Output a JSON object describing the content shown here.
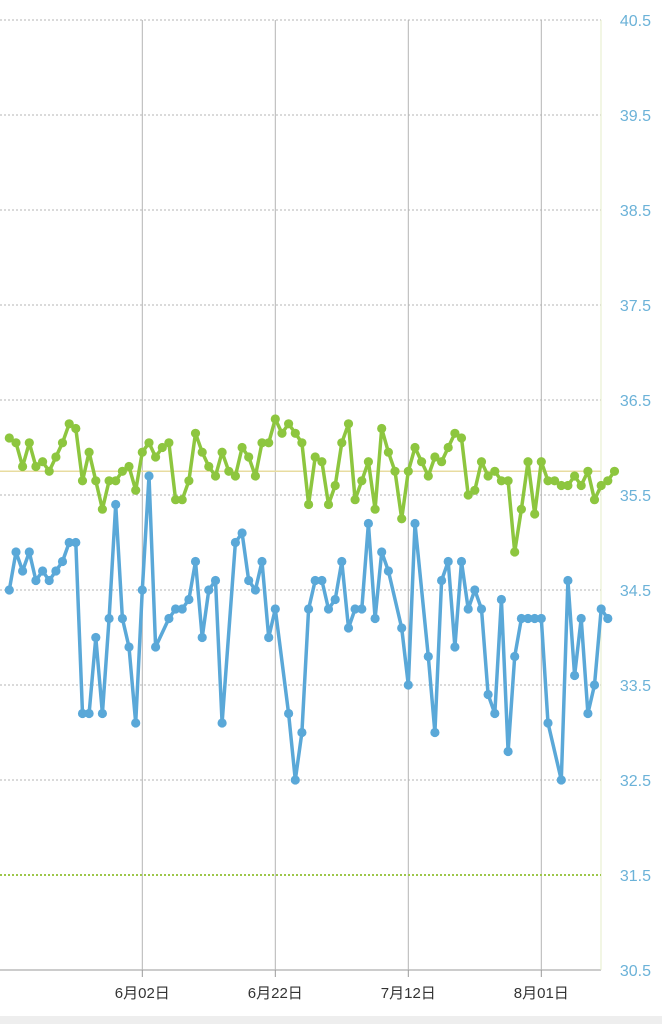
{
  "chart_data": {
    "type": "line",
    "title": "",
    "xlabel": "",
    "ylabel": "",
    "ylim": [
      30.5,
      40.5
    ],
    "y_ticks": [
      "30.5",
      "31.5",
      "32.5",
      "33.5",
      "34.5",
      "35.5",
      "36.5",
      "37.5",
      "38.5",
      "39.5",
      "40.5"
    ],
    "x_ticks": [
      {
        "label": "6月02日",
        "day": 20
      },
      {
        "label": "6月22日",
        "day": 40
      },
      {
        "label": "7月12日",
        "day": 60
      },
      {
        "label": "8月01日",
        "day": 80
      }
    ],
    "x_day_range": [
      0,
      90
    ],
    "grid": true,
    "reference_lines": [
      {
        "value": 35.75,
        "color": "#e8dca0",
        "style": "solid"
      },
      {
        "value": 31.5,
        "color": "#9dc74a",
        "style": "dotted"
      }
    ],
    "series": [
      {
        "color": "#8dc63f",
        "points": [
          [
            0,
            36.1
          ],
          [
            1,
            36.05
          ],
          [
            2,
            35.8
          ],
          [
            3,
            36.05
          ],
          [
            4,
            35.8
          ],
          [
            5,
            35.85
          ],
          [
            6,
            35.75
          ],
          [
            7,
            35.9
          ],
          [
            8,
            36.05
          ],
          [
            9,
            36.25
          ],
          [
            10,
            36.2
          ],
          [
            11,
            35.65
          ],
          [
            12,
            35.95
          ],
          [
            13,
            35.65
          ],
          [
            14,
            35.35
          ],
          [
            15,
            35.65
          ],
          [
            16,
            35.65
          ],
          [
            17,
            35.75
          ],
          [
            18,
            35.8
          ],
          [
            19,
            35.55
          ],
          [
            20,
            35.95
          ],
          [
            21,
            36.05
          ],
          [
            22,
            35.9
          ],
          [
            23,
            36.0
          ],
          [
            24,
            36.05
          ],
          [
            25,
            35.45
          ],
          [
            26,
            35.45
          ],
          [
            27,
            35.65
          ],
          [
            28,
            36.15
          ],
          [
            29,
            35.95
          ],
          [
            30,
            35.8
          ],
          [
            31,
            35.7
          ],
          [
            32,
            35.95
          ],
          [
            33,
            35.75
          ],
          [
            34,
            35.7
          ],
          [
            35,
            36.0
          ],
          [
            36,
            35.9
          ],
          [
            37,
            35.7
          ],
          [
            38,
            36.05
          ],
          [
            39,
            36.05
          ],
          [
            40,
            36.3
          ],
          [
            41,
            36.15
          ],
          [
            42,
            36.25
          ],
          [
            43,
            36.15
          ],
          [
            44,
            36.05
          ],
          [
            45,
            35.4
          ],
          [
            46,
            35.9
          ],
          [
            47,
            35.85
          ],
          [
            48,
            35.4
          ],
          [
            49,
            35.6
          ],
          [
            50,
            36.05
          ],
          [
            51,
            36.25
          ],
          [
            52,
            35.45
          ],
          [
            53,
            35.65
          ],
          [
            54,
            35.85
          ],
          [
            55,
            35.35
          ],
          [
            56,
            36.2
          ],
          [
            57,
            35.95
          ],
          [
            58,
            35.75
          ],
          [
            59,
            35.25
          ],
          [
            60,
            35.75
          ],
          [
            61,
            36.0
          ],
          [
            62,
            35.85
          ],
          [
            63,
            35.7
          ],
          [
            64,
            35.9
          ],
          [
            65,
            35.85
          ],
          [
            66,
            36.0
          ],
          [
            67,
            36.15
          ],
          [
            68,
            36.1
          ],
          [
            69,
            35.5
          ],
          [
            70,
            35.55
          ],
          [
            71,
            35.85
          ],
          [
            72,
            35.7
          ],
          [
            73,
            35.75
          ],
          [
            74,
            35.65
          ],
          [
            75,
            35.65
          ],
          [
            76,
            34.9
          ],
          [
            77,
            35.35
          ],
          [
            78,
            35.85
          ],
          [
            79,
            35.3
          ],
          [
            80,
            35.85
          ],
          [
            81,
            35.65
          ],
          [
            82,
            35.65
          ],
          [
            83,
            35.6
          ],
          [
            84,
            35.6
          ],
          [
            85,
            35.7
          ],
          [
            86,
            35.6
          ],
          [
            87,
            35.75
          ],
          [
            88,
            35.45
          ],
          [
            89,
            35.6
          ],
          [
            90,
            35.65
          ],
          [
            91,
            35.75
          ]
        ]
      },
      {
        "color": "#5aa8d8",
        "points": [
          [
            0,
            34.5
          ],
          [
            1,
            34.9
          ],
          [
            2,
            34.7
          ],
          [
            3,
            34.9
          ],
          [
            4,
            34.6
          ],
          [
            5,
            34.7
          ],
          [
            6,
            34.6
          ],
          [
            7,
            34.7
          ],
          [
            8,
            34.8
          ],
          [
            9,
            35.0
          ],
          [
            10,
            35.0
          ],
          [
            11,
            33.2
          ],
          [
            12,
            33.2
          ],
          [
            13,
            34.0
          ],
          [
            14,
            33.2
          ],
          [
            15,
            34.2
          ],
          [
            16,
            35.4
          ],
          [
            17,
            34.2
          ],
          [
            18,
            33.9
          ],
          [
            19,
            33.1
          ],
          [
            20,
            34.5
          ],
          [
            21,
            35.7
          ],
          [
            22,
            33.9
          ],
          [
            24,
            34.2
          ],
          [
            25,
            34.3
          ],
          [
            26,
            34.3
          ],
          [
            27,
            34.4
          ],
          [
            28,
            34.8
          ],
          [
            29,
            34.0
          ],
          [
            30,
            34.5
          ],
          [
            31,
            34.6
          ],
          [
            32,
            33.1
          ],
          [
            34,
            35.0
          ],
          [
            35,
            35.1
          ],
          [
            36,
            34.6
          ],
          [
            37,
            34.5
          ],
          [
            38,
            34.8
          ],
          [
            39,
            34.0
          ],
          [
            40,
            34.3
          ],
          [
            42,
            33.2
          ],
          [
            43,
            32.5
          ],
          [
            44,
            33.0
          ],
          [
            45,
            34.3
          ],
          [
            46,
            34.6
          ],
          [
            47,
            34.6
          ],
          [
            48,
            34.3
          ],
          [
            49,
            34.4
          ],
          [
            50,
            34.8
          ],
          [
            51,
            34.1
          ],
          [
            52,
            34.3
          ],
          [
            53,
            34.3
          ],
          [
            54,
            35.2
          ],
          [
            55,
            34.2
          ],
          [
            56,
            34.9
          ],
          [
            57,
            34.7
          ],
          [
            59,
            34.1
          ],
          [
            60,
            33.5
          ],
          [
            61,
            35.2
          ],
          [
            63,
            33.8
          ],
          [
            64,
            33.0
          ],
          [
            65,
            34.6
          ],
          [
            66,
            34.8
          ],
          [
            67,
            33.9
          ],
          [
            68,
            34.8
          ],
          [
            69,
            34.3
          ],
          [
            70,
            34.5
          ],
          [
            71,
            34.3
          ],
          [
            72,
            33.4
          ],
          [
            73,
            33.2
          ],
          [
            74,
            34.4
          ],
          [
            75,
            32.8
          ],
          [
            76,
            33.8
          ],
          [
            77,
            34.2
          ],
          [
            78,
            34.2
          ],
          [
            79,
            34.2
          ],
          [
            80,
            34.2
          ],
          [
            81,
            33.1
          ],
          [
            83,
            32.5
          ],
          [
            84,
            34.6
          ],
          [
            85,
            33.6
          ],
          [
            86,
            34.2
          ],
          [
            87,
            33.2
          ],
          [
            88,
            33.5
          ],
          [
            89,
            34.3
          ],
          [
            90,
            34.2
          ]
        ]
      }
    ]
  }
}
